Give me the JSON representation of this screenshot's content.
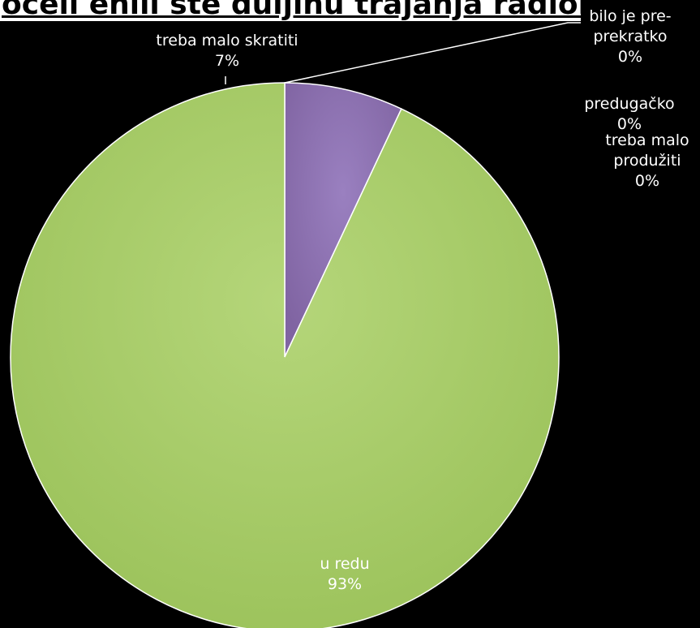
{
  "chart_data": {
    "type": "pie",
    "title": "Jeste li zadovoljni sa dužinom trajanja radionice",
    "title_visible": "oceli enili ste duljinu trajanja radionice",
    "slices": [
      {
        "label": "bilo je pre-prekratko",
        "label_lines": [
          "bilo je pre-",
          "prekratko"
        ],
        "value": 0,
        "pct": "0%",
        "color": "#4f81bd"
      },
      {
        "label": "predugačko",
        "label_lines": [
          "predugačko"
        ],
        "value": 0,
        "pct": "0%",
        "color": "#c0504d"
      },
      {
        "label": "treba malo produžiti",
        "label_lines": [
          "treba malo",
          "produžiti"
        ],
        "value": 0,
        "pct": "0%",
        "color": "#f79646"
      },
      {
        "label": "treba malo skratiti",
        "label_lines": [
          "treba malo skratiti"
        ],
        "value": 7,
        "pct": "7%",
        "color": "#8064a2"
      },
      {
        "label": "u redu",
        "label_lines": [
          "u redu"
        ],
        "value": 93,
        "pct": "93%",
        "color": "#9bbb59"
      }
    ],
    "legend": "none",
    "start_angle_deg": 0,
    "direction": "clockwise"
  }
}
